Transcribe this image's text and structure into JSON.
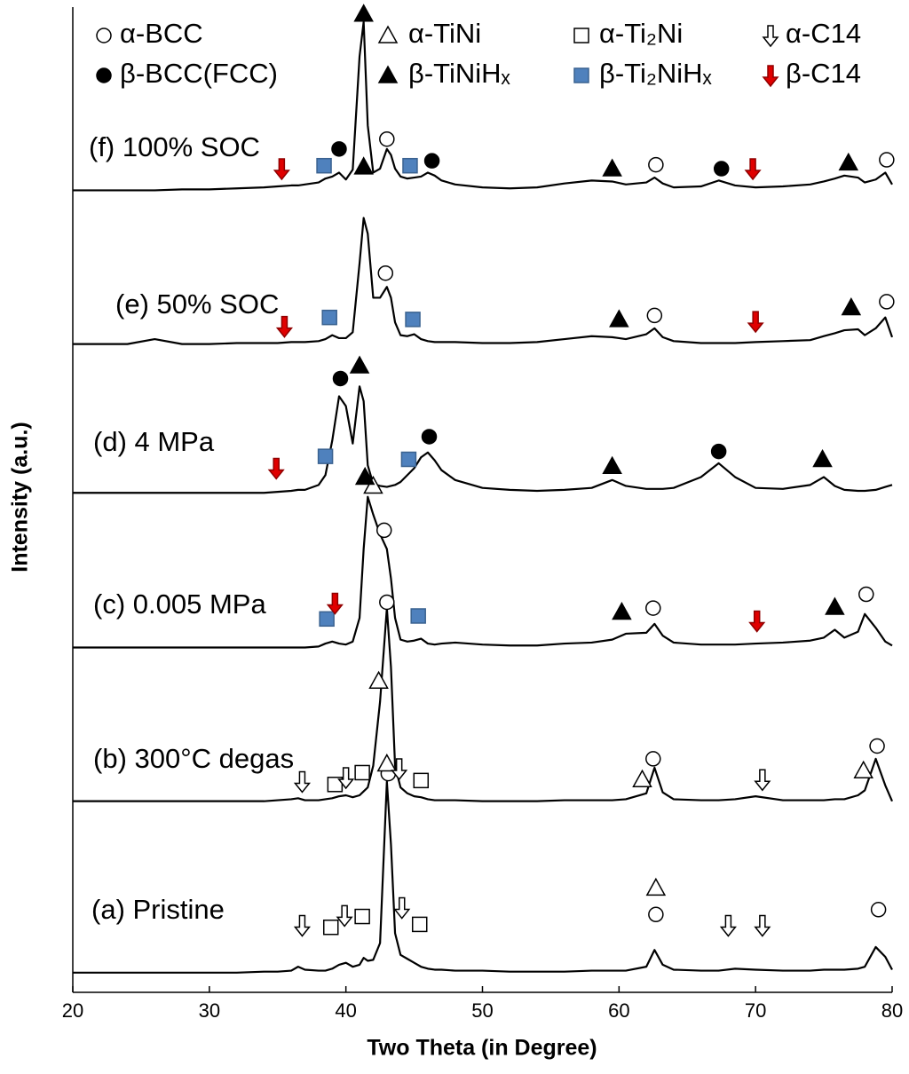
{
  "chart_data": {
    "type": "line",
    "xlabel": "Two Theta (in Degree)",
    "ylabel": "Intensity (a.u.)",
    "xlim": [
      20,
      80
    ],
    "xticks": [
      20,
      30,
      40,
      50,
      60,
      70,
      80
    ],
    "ylim": [
      0,
      100
    ],
    "color": "#000000",
    "x": [
      20,
      22,
      24,
      26,
      28,
      30,
      32,
      34,
      35,
      36,
      36.5,
      37,
      38,
      38.5,
      39,
      39.5,
      40,
      40.5,
      41,
      41.3,
      41.6,
      42,
      42.5,
      43,
      43.3,
      43.6,
      44,
      44.5,
      45,
      45.5,
      46,
      46.5,
      47,
      48,
      50,
      52,
      54,
      56,
      58,
      59.5,
      60.5,
      62,
      62.6,
      63.2,
      64,
      66,
      67.3,
      68.5,
      70,
      72,
      74,
      75,
      75.8,
      76.5,
      77.5,
      78,
      78.8,
      79.5,
      80
    ],
    "series": [
      {
        "name": "(a) Pristine",
        "values": [
          2.0,
          2.0,
          2.0,
          2.0,
          2.0,
          2.0,
          2.0,
          2.1,
          2.1,
          2.2,
          2.6,
          2.3,
          2.2,
          2.2,
          2.4,
          2.8,
          3.0,
          2.6,
          2.8,
          3.5,
          3.2,
          3.3,
          5.0,
          21.4,
          15.0,
          6.0,
          3.8,
          3.4,
          3.0,
          2.6,
          2.4,
          2.3,
          2.3,
          2.2,
          2.2,
          2.1,
          2.1,
          2.1,
          2.2,
          2.2,
          2.2,
          2.6,
          4.3,
          2.8,
          2.3,
          2.2,
          2.2,
          2.4,
          2.3,
          2.2,
          2.2,
          2.3,
          2.3,
          2.3,
          2.4,
          2.6,
          4.6,
          3.6,
          2.3
        ]
      },
      {
        "name": "(b) 300°C degas",
        "values": [
          19.4,
          19.4,
          19.4,
          19.4,
          19.4,
          19.4,
          19.4,
          19.4,
          19.5,
          19.6,
          19.7,
          19.5,
          19.5,
          19.6,
          19.7,
          19.9,
          20.0,
          19.8,
          20.0,
          20.4,
          20.8,
          23.0,
          29.5,
          39.0,
          33.0,
          23.0,
          20.8,
          20.2,
          19.9,
          19.8,
          19.6,
          19.5,
          19.5,
          19.5,
          19.4,
          19.4,
          19.4,
          19.5,
          19.5,
          19.5,
          19.6,
          20.2,
          22.8,
          20.3,
          19.6,
          19.5,
          19.5,
          19.6,
          19.9,
          19.5,
          19.5,
          19.5,
          19.6,
          19.6,
          20.0,
          20.5,
          23.7,
          21.0,
          19.4
        ]
      },
      {
        "name": "(c) 0.005 MPa",
        "values": [
          35.0,
          35.0,
          35.0,
          35.0,
          35.0,
          35.0,
          35.0,
          35.0,
          35.0,
          35.0,
          35.0,
          35.0,
          35.1,
          35.4,
          35.6,
          35.4,
          35.3,
          35.6,
          38.0,
          45.0,
          50.3,
          48.5,
          46.5,
          45.0,
          42.0,
          38.0,
          35.8,
          35.6,
          35.7,
          35.9,
          35.4,
          35.3,
          35.4,
          35.5,
          35.3,
          35.2,
          35.2,
          35.4,
          35.5,
          35.8,
          36.4,
          36.5,
          37.4,
          36.2,
          35.5,
          35.3,
          35.3,
          35.3,
          35.4,
          35.5,
          35.7,
          36.0,
          36.8,
          36.0,
          36.6,
          38.4,
          37.0,
          35.6,
          35.2
        ]
      },
      {
        "name": "(d) 4 MPa",
        "values": [
          50.7,
          50.7,
          50.7,
          50.7,
          50.7,
          50.7,
          50.7,
          50.7,
          50.8,
          50.9,
          51.0,
          51.0,
          51.5,
          52.5,
          56.0,
          60.5,
          59.5,
          55.7,
          61.5,
          60.0,
          53.5,
          51.6,
          51.4,
          51.3,
          51.4,
          51.5,
          51.8,
          52.5,
          53.2,
          54.3,
          54.8,
          54.0,
          53.0,
          52.0,
          51.2,
          51.0,
          50.9,
          51.0,
          51.2,
          52.0,
          51.4,
          51.1,
          51.1,
          51.1,
          51.2,
          52.3,
          53.7,
          52.3,
          51.2,
          51.1,
          51.5,
          52.3,
          51.4,
          51.0,
          50.9,
          50.9,
          51.0,
          51.3,
          51.5
        ]
      },
      {
        "name": "(e) 50% SOC",
        "values": [
          65.8,
          65.8,
          65.8,
          66.3,
          65.8,
          65.8,
          65.9,
          65.9,
          65.9,
          66.0,
          66.0,
          66.0,
          66.1,
          66.3,
          66.7,
          66.4,
          66.4,
          67.0,
          74.0,
          78.6,
          77.0,
          70.5,
          70.5,
          71.6,
          70.5,
          68.0,
          66.7,
          66.6,
          66.8,
          66.3,
          66.1,
          66.0,
          66.0,
          66.0,
          65.9,
          65.9,
          66.0,
          66.3,
          66.6,
          66.5,
          66.3,
          66.8,
          67.4,
          66.5,
          66.1,
          65.9,
          65.9,
          65.9,
          66.0,
          66.1,
          66.2,
          66.6,
          66.9,
          67.2,
          67.3,
          66.7,
          67.4,
          68.5,
          66.5
        ]
      },
      {
        "name": "(f) 100% SOC",
        "values": [
          81.4,
          81.4,
          81.4,
          81.4,
          81.5,
          81.5,
          81.6,
          81.7,
          81.8,
          81.9,
          81.9,
          82.0,
          82.2,
          82.6,
          82.8,
          83.2,
          82.5,
          83.5,
          95.0,
          98.5,
          88.0,
          83.2,
          83.6,
          85.6,
          85.0,
          83.6,
          82.8,
          82.6,
          82.7,
          82.8,
          83.2,
          82.9,
          82.4,
          82.0,
          81.7,
          81.6,
          81.7,
          82.1,
          82.4,
          82.3,
          82.0,
          82.2,
          82.7,
          82.1,
          81.7,
          81.8,
          82.4,
          81.9,
          81.7,
          81.8,
          82.0,
          82.3,
          82.6,
          82.9,
          82.7,
          82.2,
          82.5,
          83.2,
          82.0
        ]
      }
    ],
    "phases": [
      {
        "name": "α-BCC",
        "symbol": "circle",
        "fill": "#ffffff",
        "points": [
          {
            "x": 43.1,
            "y": 22.2
          },
          {
            "x": 62.7,
            "y": 7.9
          },
          {
            "x": 79.0,
            "y": 8.4
          },
          {
            "x": 43.0,
            "y": 39.6
          },
          {
            "x": 62.5,
            "y": 23.7
          },
          {
            "x": 78.9,
            "y": 25.0
          },
          {
            "x": 42.8,
            "y": 46.9
          },
          {
            "x": 62.5,
            "y": 39.0
          },
          {
            "x": 78.1,
            "y": 40.4
          },
          {
            "x": 42.9,
            "y": 73.0
          },
          {
            "x": 62.6,
            "y": 68.7
          },
          {
            "x": 79.6,
            "y": 70.1
          },
          {
            "x": 43.0,
            "y": 86.6
          },
          {
            "x": 62.7,
            "y": 84.0
          },
          {
            "x": 79.6,
            "y": 84.5
          }
        ]
      },
      {
        "name": "β-BCC(FCC)",
        "symbol": "circle",
        "fill": "#000000",
        "points": [
          {
            "x": 39.5,
            "y": 85.6
          },
          {
            "x": 46.3,
            "y": 84.4
          },
          {
            "x": 67.5,
            "y": 83.6
          },
          {
            "x": 39.6,
            "y": 62.3
          },
          {
            "x": 46.1,
            "y": 56.4
          },
          {
            "x": 67.3,
            "y": 54.9
          }
        ]
      },
      {
        "name": "α-TiNi",
        "symbol": "triangle",
        "fill": "#ffffff",
        "points": [
          {
            "x": 62.7,
            "y": 10.6
          },
          {
            "x": 42.4,
            "y": 31.6
          },
          {
            "x": 43.0,
            "y": 23.2
          },
          {
            "x": 61.7,
            "y": 21.6
          },
          {
            "x": 77.9,
            "y": 22.5
          },
          {
            "x": 42.0,
            "y": 51.4
          }
        ]
      },
      {
        "name": "β-TiNiHₓ",
        "symbol": "triangle",
        "fill": "#000000",
        "points": [
          {
            "x": 41.3,
            "y": 99.3
          },
          {
            "x": 41.3,
            "y": 83.8
          },
          {
            "x": 59.5,
            "y": 83.6
          },
          {
            "x": 76.8,
            "y": 84.2
          },
          {
            "x": 60.0,
            "y": 68.3
          },
          {
            "x": 77.0,
            "y": 69.5
          },
          {
            "x": 41.0,
            "y": 63.6
          },
          {
            "x": 59.5,
            "y": 53.4
          },
          {
            "x": 74.9,
            "y": 54.1
          },
          {
            "x": 41.4,
            "y": 52.3
          },
          {
            "x": 60.2,
            "y": 38.6
          },
          {
            "x": 75.8,
            "y": 39.1
          }
        ]
      },
      {
        "name": "α-Ti₂Ni",
        "symbol": "square",
        "fill": "#ffffff",
        "points": [
          {
            "x": 38.9,
            "y": 6.6
          },
          {
            "x": 41.2,
            "y": 7.7
          },
          {
            "x": 45.4,
            "y": 6.9
          },
          {
            "x": 39.2,
            "y": 21.1
          },
          {
            "x": 41.2,
            "y": 22.3
          },
          {
            "x": 45.5,
            "y": 21.5
          }
        ]
      },
      {
        "name": "β-Ti₂NiHₓ",
        "symbol": "square",
        "fill": "#4f81bd",
        "points": [
          {
            "x": 38.4,
            "y": 83.9
          },
          {
            "x": 44.7,
            "y": 83.9
          },
          {
            "x": 38.8,
            "y": 68.5
          },
          {
            "x": 44.9,
            "y": 68.3
          },
          {
            "x": 38.5,
            "y": 54.4
          },
          {
            "x": 44.6,
            "y": 54.1
          },
          {
            "x": 38.6,
            "y": 37.9
          },
          {
            "x": 45.3,
            "y": 38.2
          }
        ]
      },
      {
        "name": "α-C14",
        "symbol": "arrow",
        "fill": "#ffffff",
        "points": [
          {
            "x": 36.8,
            "y": 6.8
          },
          {
            "x": 39.9,
            "y": 7.8
          },
          {
            "x": 44.1,
            "y": 8.6
          },
          {
            "x": 68.0,
            "y": 6.8
          },
          {
            "x": 70.5,
            "y": 6.8
          },
          {
            "x": 36.8,
            "y": 21.4
          },
          {
            "x": 40.0,
            "y": 21.8
          },
          {
            "x": 43.9,
            "y": 22.7
          },
          {
            "x": 70.5,
            "y": 21.6
          }
        ]
      },
      {
        "name": "β-C14",
        "symbol": "arrow",
        "fill": "#e00000",
        "points": [
          {
            "x": 35.3,
            "y": 83.6
          },
          {
            "x": 69.8,
            "y": 83.6
          },
          {
            "x": 35.5,
            "y": 67.6
          },
          {
            "x": 70.0,
            "y": 68.1
          },
          {
            "x": 34.9,
            "y": 53.2
          },
          {
            "x": 39.2,
            "y": 39.5
          },
          {
            "x": 70.1,
            "y": 37.7
          }
        ]
      }
    ]
  }
}
